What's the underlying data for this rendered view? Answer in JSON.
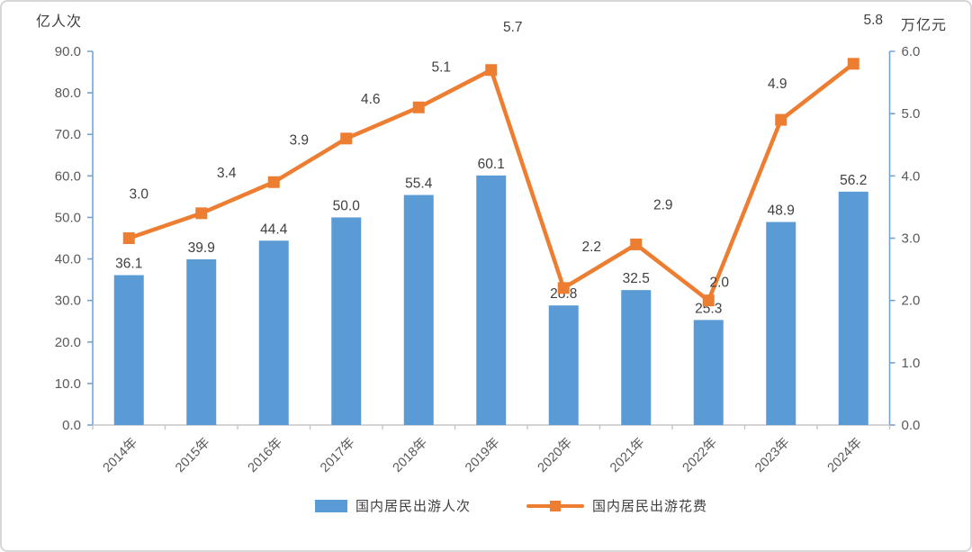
{
  "chart_data": {
    "type": "bar+line combo",
    "categories": [
      "2014年",
      "2015年",
      "2016年",
      "2017年",
      "2018年",
      "2019年",
      "2020年",
      "2021年",
      "2022年",
      "2023年",
      "2024年"
    ],
    "series": [
      {
        "name": "国内居民出游人次",
        "type": "bar",
        "axis": "left",
        "unit": "亿人次",
        "color": "#5B9BD5",
        "values": [
          36.1,
          39.9,
          44.4,
          50.0,
          55.4,
          60.1,
          28.8,
          32.5,
          25.3,
          48.9,
          56.2
        ]
      },
      {
        "name": "国内居民出游花费",
        "type": "line",
        "axis": "right",
        "unit": "万亿元",
        "color": "#ED7D31",
        "marker": "square",
        "values": [
          3.0,
          3.4,
          3.9,
          4.6,
          5.1,
          5.7,
          2.2,
          2.9,
          2.0,
          4.9,
          5.8
        ]
      }
    ],
    "left_axis": {
      "title": "亿人次",
      "min": 0,
      "max": 90,
      "step": 10,
      "tick_labels": [
        "0.0",
        "10.0",
        "20.0",
        "30.0",
        "40.0",
        "50.0",
        "60.0",
        "70.0",
        "80.0",
        "90.0"
      ]
    },
    "right_axis": {
      "title": "万亿元",
      "min": 0,
      "max": 6,
      "step": 1,
      "tick_labels": [
        "0.0",
        "1.0",
        "2.0",
        "3.0",
        "4.0",
        "5.0",
        "6.0"
      ]
    },
    "grid": false,
    "data_labels": true,
    "legend_position": "bottom",
    "colors": {
      "bar": "#5B9BD5",
      "line": "#ED7D31",
      "vertical_axis": "#74A3D2",
      "horizontal_axis": "#C6C6C6",
      "tick_label": "#595959",
      "data_label": "#404040"
    }
  }
}
